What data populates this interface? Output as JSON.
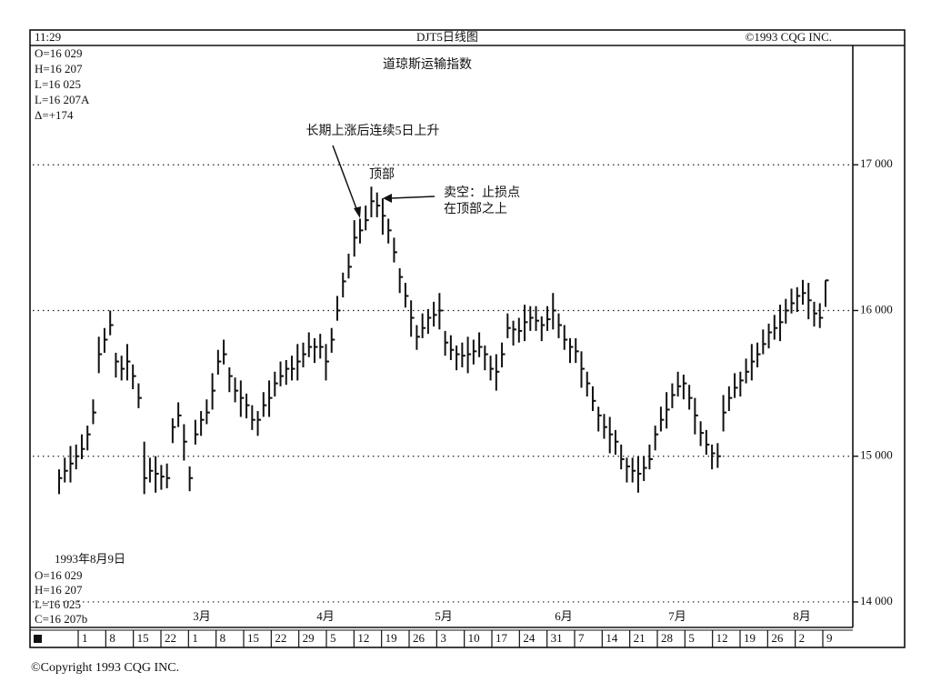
{
  "header": {
    "time": "11:29",
    "name": "DJT5日线图",
    "copyright": "©1993 CQG INC."
  },
  "chart_data": {
    "type": "ohlc",
    "title": "道琼斯运输指数",
    "close": [
      14850,
      14900,
      14950,
      15000,
      15050,
      15150,
      15300,
      15700,
      15800,
      15900,
      15650,
      15600,
      15650,
      15550,
      15400,
      14850,
      14900,
      14880,
      14860,
      14850,
      15200,
      15280,
      15100,
      14850,
      15150,
      15250,
      15300,
      15450,
      15650,
      15700,
      15550,
      15450,
      15400,
      15350,
      15250,
      15250,
      15350,
      15400,
      15500,
      15550,
      15600,
      15600,
      15650,
      15700,
      15750,
      15750,
      15750,
      15650,
      15800,
      16000,
      16200,
      16300,
      16500,
      16550,
      16620,
      16750,
      16720,
      16650,
      16550,
      16400,
      16230,
      16100,
      15950,
      15820,
      15880,
      15950,
      15970,
      16000,
      15780,
      15730,
      15700,
      15690,
      15700,
      15720,
      15750,
      15700,
      15600,
      15580,
      15700,
      15880,
      15870,
      15860,
      15920,
      15950,
      15930,
      15900,
      15940,
      16000,
      15900,
      15800,
      15750,
      15720,
      15600,
      15500,
      15380,
      15280,
      15200,
      15150,
      15100,
      14980,
      14930,
      14900,
      14880,
      14920,
      14980,
      15150,
      15250,
      15320,
      15420,
      15480,
      15500,
      15400,
      15280,
      15160,
      15080,
      15020,
      15000,
      15300,
      15400,
      15470,
      15520,
      15580,
      15650,
      15700,
      15770,
      15850,
      15880,
      15920,
      16000,
      16050,
      16100,
      16120,
      16070,
      15980,
      15950,
      16207
    ],
    "high": [
      14910,
      14990,
      15070,
      15080,
      15150,
      15210,
      15390,
      15820,
      15880,
      16000,
      15710,
      15690,
      15770,
      15630,
      15500,
      15100,
      14990,
      15000,
      14940,
      14950,
      15260,
      15370,
      15220,
      14930,
      15250,
      15310,
      15390,
      15570,
      15730,
      15800,
      15610,
      15540,
      15520,
      15430,
      15350,
      15310,
      15440,
      15520,
      15580,
      15650,
      15660,
      15690,
      15770,
      15780,
      15850,
      15810,
      15840,
      15770,
      15880,
      16100,
      16260,
      16390,
      16620,
      16630,
      16720,
      16850,
      16810,
      16770,
      16630,
      16500,
      16290,
      16190,
      16070,
      15900,
      15980,
      16010,
      16060,
      16120,
      15860,
      15830,
      15760,
      15780,
      15820,
      15800,
      15850,
      15760,
      15690,
      15700,
      15780,
      15980,
      15930,
      15950,
      16040,
      16030,
      16030,
      15960,
      16030,
      16120,
      15980,
      15900,
      15810,
      15810,
      15720,
      15580,
      15480,
      15340,
      15290,
      15270,
      15180,
      15080,
      14990,
      14990,
      15000,
      15000,
      15080,
      15210,
      15340,
      15440,
      15500,
      15580,
      15560,
      15490,
      15400,
      15240,
      15180,
      15080,
      15090,
      15420,
      15480,
      15570,
      15580,
      15670,
      15770,
      15780,
      15870,
      15910,
      15970,
      16040,
      16080,
      16150,
      16160,
      16210,
      16190,
      16060,
      16050,
      16207
    ],
    "low": [
      14740,
      14820,
      14820,
      14910,
      14980,
      15040,
      15220,
      15570,
      15710,
      15830,
      15540,
      15520,
      15520,
      15460,
      15330,
      14740,
      14820,
      14750,
      14770,
      14780,
      15090,
      15200,
      14970,
      14760,
      15080,
      15140,
      15220,
      15320,
      15560,
      15630,
      15440,
      15370,
      15270,
      15260,
      15180,
      15140,
      15270,
      15270,
      15410,
      15480,
      15490,
      15520,
      15520,
      15610,
      15680,
      15640,
      15670,
      15520,
      15710,
      15930,
      16090,
      16220,
      16370,
      16460,
      16550,
      16640,
      16640,
      16520,
      16460,
      16330,
      16120,
      16020,
      15820,
      15730,
      15810,
      15840,
      15890,
      15870,
      15690,
      15660,
      15590,
      15610,
      15570,
      15630,
      15680,
      15590,
      15520,
      15450,
      15610,
      15810,
      15760,
      15780,
      15790,
      15860,
      15860,
      15790,
      15860,
      15870,
      15810,
      15730,
      15640,
      15640,
      15470,
      15410,
      15310,
      15170,
      15120,
      15020,
      15010,
      14910,
      14820,
      14820,
      14750,
      14830,
      14910,
      15040,
      15170,
      15190,
      15330,
      15410,
      15390,
      15320,
      15150,
      15070,
      15010,
      14910,
      14920,
      15170,
      15310,
      15400,
      15410,
      15500,
      15520,
      15610,
      15700,
      15740,
      15800,
      15790,
      15910,
      15980,
      15990,
      16040,
      15940,
      15890,
      15880,
      16025
    ],
    "ylim": [
      13825,
      17819
    ],
    "yticks": [
      {
        "value": 14000,
        "label": "14 000"
      },
      {
        "value": 15000,
        "label": "15 000"
      },
      {
        "value": 16000,
        "label": "16 000"
      },
      {
        "value": 17000,
        "label": "17 000"
      }
    ],
    "grid": true,
    "date_labels": [
      "1",
      "8",
      "15",
      "22",
      "1",
      "8",
      "15",
      "22",
      "29",
      "5",
      "12",
      "19",
      "26",
      "3",
      "10",
      "17",
      "24",
      "31",
      "7",
      "14",
      "21",
      "28",
      "5",
      "12",
      "19",
      "26",
      "2",
      "9"
    ],
    "months": [
      "3月",
      "4月",
      "5月",
      "6月",
      "7月",
      "8月"
    ],
    "info_top": [
      "O=16 029",
      "H=16 207",
      "L=16 025",
      "L=16 207A",
      "Δ=+174"
    ],
    "info_bottom": {
      "date": "1993年8月9日",
      "lines": [
        "O=16 029",
        "H=16 207",
        "L=16 025",
        "C=16 207b"
      ]
    },
    "annotations": {
      "rise": "长期上涨后连续5日上升",
      "top": "顶部",
      "short_1": "卖空：止损点",
      "short_2": "在顶部之上"
    }
  },
  "footer": "©Copyright 1993 CQG INC."
}
